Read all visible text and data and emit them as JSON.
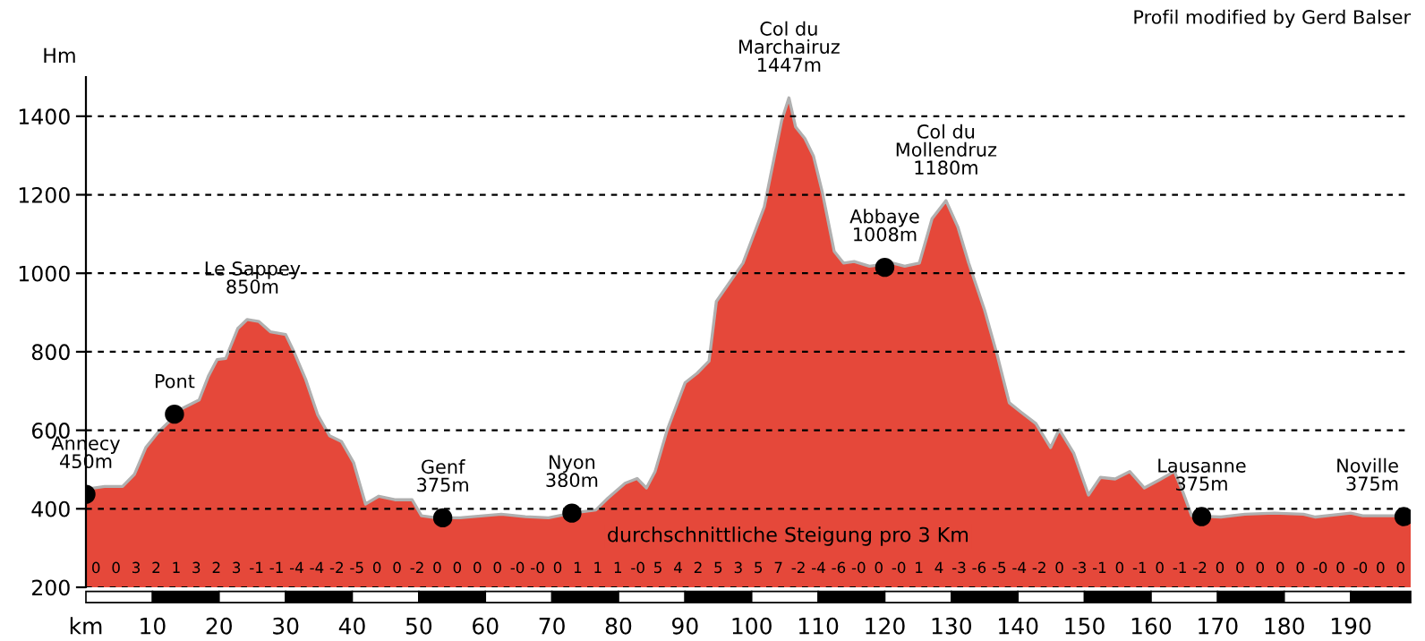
{
  "chart_data": {
    "type": "area",
    "ylabel": "Hm",
    "xlim": [
      0,
      199
    ],
    "ylim": [
      200,
      1500
    ],
    "xticks": [
      {
        "value": 0,
        "label": "km"
      },
      10,
      20,
      30,
      40,
      50,
      60,
      70,
      80,
      90,
      100,
      110,
      120,
      130,
      140,
      150,
      160,
      170,
      180,
      190
    ],
    "yticks": [
      200,
      400,
      600,
      800,
      1000,
      1200,
      1400
    ],
    "grid": "y",
    "series": [
      {
        "color": "#e5483a",
        "x": [
          0,
          2.8,
          5.5,
          7.3,
          9,
          10.8,
          12.6,
          14.4,
          17,
          18.4,
          19.7,
          21,
          22.8,
          24.2,
          26,
          27.7,
          30,
          31.3,
          33,
          34.8,
          36.6,
          38.4,
          40.2,
          42,
          44,
          46.4,
          49,
          50.4,
          52.6,
          56.2,
          59.7,
          62.4,
          66,
          69.5,
          73,
          76.6,
          78.4,
          81,
          82.8,
          84.2,
          85.5,
          87.3,
          90,
          91.8,
          93.6,
          94.7,
          98.7,
          101.9,
          104.5,
          105.6,
          106.6,
          108,
          109.3,
          110.6,
          112.4,
          113.8,
          115.4,
          117.7,
          121.2,
          123,
          125.2,
          127.1,
          129.2,
          131,
          132.6,
          135,
          136.9,
          138.7,
          140.4,
          142.7,
          144.9,
          146.2,
          148.4,
          150.6,
          152.4,
          154.6,
          156.8,
          159,
          161.2,
          163.5,
          164.8,
          166.1,
          170.5,
          174.1,
          178.5,
          182.9,
          184.7,
          190,
          191.8,
          199
        ],
        "values": [
          450,
          457,
          457,
          488,
          556,
          594,
          624,
          655,
          677,
          738,
          780,
          783,
          859,
          882,
          877,
          851,
          844,
          798,
          730,
          640,
          586,
          571,
          518,
          412,
          432,
          423,
          423,
          382,
          377,
          377,
          382,
          386,
          380,
          377,
          389,
          397,
          427,
          465,
          477,
          453,
          495,
          600,
          721,
          745,
          776,
          928,
          1026,
          1169,
          1388,
          1447,
          1373,
          1343,
          1298,
          1208,
          1056,
          1026,
          1030,
          1018,
          1026,
          1018,
          1026,
          1139,
          1185,
          1117,
          1026,
          906,
          791,
          670,
          647,
          617,
          556,
          602,
          541,
          435,
          480,
          476,
          495,
          453,
          473,
          495,
          442,
          382,
          379,
          386,
          389,
          386,
          379,
          389,
          382,
          382
        ]
      },
      {
        "type": "scatter",
        "color": "#000000",
        "marker": "circle",
        "x": [
          0,
          13.3,
          53.6,
          73,
          120,
          167.6,
          198
        ],
        "values": [
          437,
          641,
          377,
          389,
          1015,
          380,
          380
        ]
      }
    ],
    "annotations": [
      "Profil modified by Gerd Balser",
      "durchschnittliche Steigung pro 3 Km",
      {
        "text": "Annecy\n450m",
        "x": 0,
        "y": 437
      },
      {
        "text": "Pont",
        "x": 13.3,
        "y": 641
      },
      {
        "text": "Le Sappey\n850m",
        "x": 25,
        "y": 882
      },
      {
        "text": "Genf\n375m",
        "x": 53.6,
        "y": 377
      },
      {
        "text": "Nyon\n380m",
        "x": 73,
        "y": 389
      },
      {
        "text": "Col du\nMarchairuz\n1447m",
        "x": 105.6,
        "y": 1447
      },
      {
        "text": "Abbaye\n1008m",
        "x": 120,
        "y": 1015
      },
      {
        "text": "Col du\nMollendruz\n1180m",
        "x": 129.2,
        "y": 1185
      },
      {
        "text": "Lausanne\n375m",
        "x": 167.6,
        "y": 380
      },
      {
        "text": "Noville\n375m",
        "x": 198,
        "y": 380
      },
      "0",
      "0",
      "3",
      "2",
      "1",
      "3",
      "2",
      "3",
      "-1",
      "-1",
      "-4",
      "-4",
      "-2",
      "-5",
      "0",
      "0",
      "-2",
      "0",
      "0",
      "0",
      "0",
      "-0",
      "-0",
      "0",
      "1",
      "1",
      "1",
      "-0",
      "5",
      "4",
      "2",
      "5",
      "3",
      "5",
      "7",
      "-2",
      "-4",
      "-6",
      "-0",
      "0",
      "-0",
      "1",
      "4",
      "-3",
      "-6",
      "-5",
      "-4",
      "-2",
      "0",
      "-3",
      "-1",
      "0",
      "-1",
      "0",
      "-1",
      "-2",
      "0",
      "0",
      "0",
      "0",
      "0",
      "-0",
      "0",
      "-0",
      "0",
      "0"
    ]
  }
}
